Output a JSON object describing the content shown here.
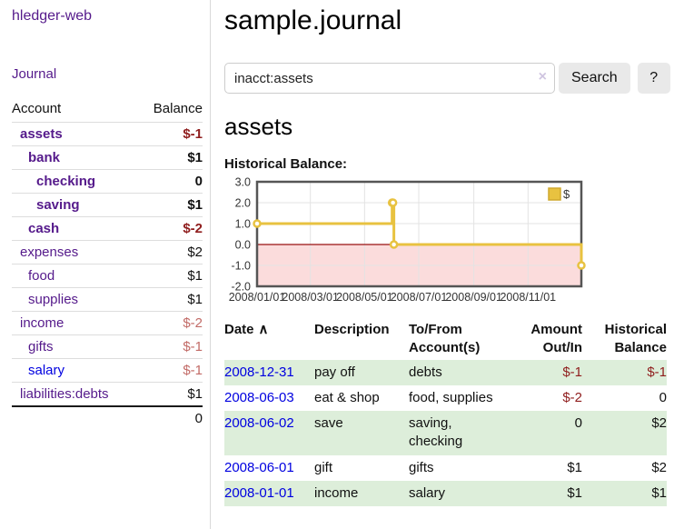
{
  "sidebar": {
    "brand": "hledger-web",
    "nav_journal": "Journal",
    "accounts": {
      "header_account": "Account",
      "header_balance": "Balance",
      "rows": [
        {
          "name": "assets",
          "depth": 1,
          "bold": true,
          "balance": "$-1",
          "neg": "strong"
        },
        {
          "name": "bank",
          "depth": 2,
          "bold": true,
          "balance": "$1"
        },
        {
          "name": "checking",
          "depth": 3,
          "bold": true,
          "balance": "0"
        },
        {
          "name": "saving",
          "depth": 3,
          "bold": true,
          "balance": "$1"
        },
        {
          "name": "cash",
          "depth": 2,
          "bold": true,
          "balance": "$-2",
          "neg": "strong"
        },
        {
          "name": "expenses",
          "depth": 1,
          "bold": false,
          "balance": "$2"
        },
        {
          "name": "food",
          "depth": 2,
          "bold": false,
          "balance": "$1"
        },
        {
          "name": "supplies",
          "depth": 2,
          "bold": false,
          "balance": "$1"
        },
        {
          "name": "income",
          "depth": 1,
          "bold": false,
          "balance": "$-2",
          "neg": "weak"
        },
        {
          "name": "gifts",
          "depth": 2,
          "bold": false,
          "balance": "$-1",
          "neg": "weak"
        },
        {
          "name": "salary",
          "depth": 2,
          "bold": false,
          "balance": "$-1",
          "neg": "weak",
          "link": "blue"
        },
        {
          "name": "liabilities:debts",
          "depth": 1,
          "bold": false,
          "balance": "$1"
        }
      ],
      "total": "0"
    }
  },
  "main": {
    "title": "sample.journal",
    "search": {
      "value": "inacct:assets",
      "clear_icon": "×",
      "button_label": "Search",
      "help_label": "?"
    },
    "account_heading": "assets",
    "chart_label": "Historical Balance:"
  },
  "chart_data": {
    "type": "line",
    "step": true,
    "title": "Historical Balance",
    "series": [
      {
        "name": "$",
        "color": "#e8c240",
        "points": [
          {
            "date": "2008-01-01",
            "value": 1
          },
          {
            "date": "2008-06-01",
            "value": 2
          },
          {
            "date": "2008-06-02",
            "value": 2
          },
          {
            "date": "2008-06-03",
            "value": 0
          },
          {
            "date": "2008-12-31",
            "value": -1
          }
        ]
      }
    ],
    "x_range": [
      "2008-01-01",
      "2008-12-31"
    ],
    "x_ticks": [
      "2008/01/01",
      "2008/03/01",
      "2008/05/01",
      "2008/07/01",
      "2008/09/01",
      "2008/11/01"
    ],
    "y_ticks": [
      "3.0",
      "2.0",
      "1.0",
      "0.0",
      "-1.0",
      "-2.0"
    ],
    "ylim": [
      -2,
      3
    ],
    "grid": true,
    "legend": {
      "label": "$",
      "position": "top-right"
    },
    "negative_region_fill": "#fbdcdc",
    "zero_line_color": "#991111",
    "grid_color": "#e3e3e3",
    "border_color": "#555555",
    "tick_label_color": "#333333"
  },
  "register": {
    "headers": {
      "date": "Date",
      "description": "Description",
      "accounts": "To/From Account(s)",
      "amount": "Amount Out/In",
      "balance": "Historical Balance"
    },
    "sort_icon": "∧",
    "rows": [
      {
        "date": "2008-12-31",
        "description": "pay off",
        "accounts": "debts",
        "amount": "$-1",
        "amount_neg": true,
        "balance": "$-1",
        "balance_neg": true
      },
      {
        "date": "2008-06-03",
        "description": "eat & shop",
        "accounts": "food, supplies",
        "amount": "$-2",
        "amount_neg": true,
        "balance": "0",
        "balance_neg": false
      },
      {
        "date": "2008-06-02",
        "description": "save",
        "accounts": "saving, checking",
        "amount": "0",
        "amount_neg": false,
        "balance": "$2",
        "balance_neg": false
      },
      {
        "date": "2008-06-01",
        "description": "gift",
        "accounts": "gifts",
        "amount": "$1",
        "amount_neg": false,
        "balance": "$2",
        "balance_neg": false
      },
      {
        "date": "2008-01-01",
        "description": "income",
        "accounts": "salary",
        "amount": "$1",
        "amount_neg": false,
        "balance": "$1",
        "balance_neg": false
      }
    ]
  },
  "colors": {
    "link_purple": "#551a8b",
    "link_blue": "#0000e0",
    "negative_strong": "#8f1d1d",
    "negative_weak": "#c26b67",
    "row_stripe_green": "#ddeeda",
    "chart_line_gold": "#e8c240"
  }
}
